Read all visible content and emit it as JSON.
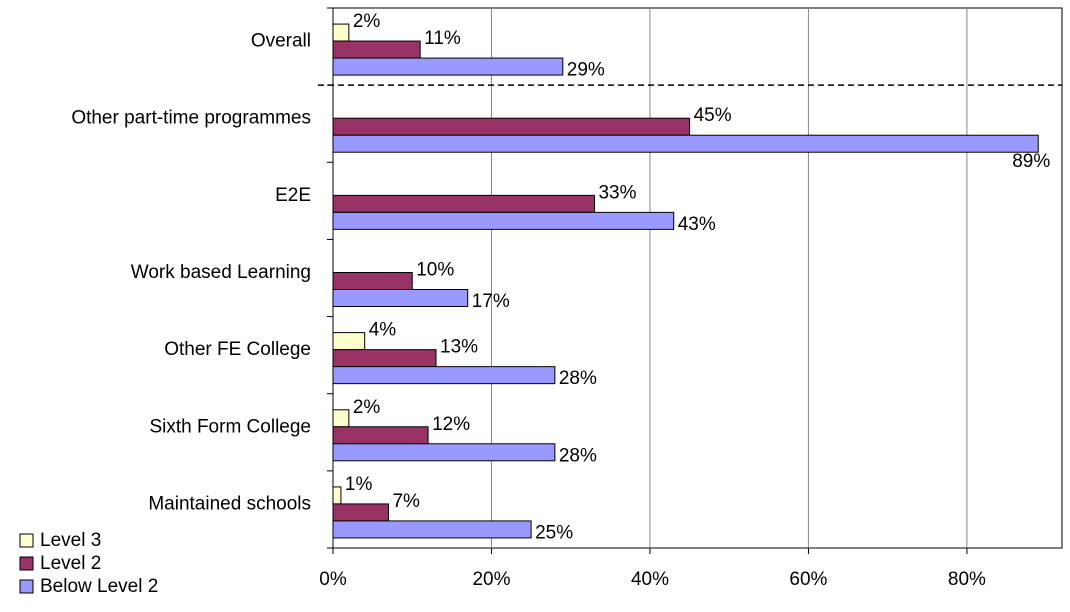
{
  "chart_data": {
    "type": "hbar",
    "categories": [
      "Overall",
      "Other part-time programmes",
      "E2E",
      "Work based Learning",
      "Other FE College",
      "Sixth Form College",
      "Maintained schools"
    ],
    "series": [
      {
        "name": "Level 3",
        "color": "#ffffcc",
        "values": [
          2,
          null,
          null,
          null,
          4,
          2,
          1
        ],
        "value_labels": [
          "2%",
          null,
          null,
          null,
          "4%",
          "2%",
          "1%"
        ]
      },
      {
        "name": "Level 2",
        "color": "#993366",
        "values": [
          11,
          45,
          33,
          10,
          13,
          12,
          7
        ],
        "value_labels": [
          "11%",
          "45%",
          "33%",
          "10%",
          "13%",
          "12%",
          "7%"
        ]
      },
      {
        "name": "Below Level 2",
        "color": "#9999ff",
        "values": [
          29,
          89,
          43,
          17,
          28,
          28,
          25
        ],
        "value_labels": [
          "29%",
          "89%",
          "43%",
          "17%",
          "28%",
          "28%",
          "25%"
        ]
      }
    ],
    "xlim": [
      0,
      92
    ],
    "xticks": [
      {
        "value": 0,
        "label": "0%"
      },
      {
        "value": 20,
        "label": "20%"
      },
      {
        "value": 40,
        "label": "40%"
      },
      {
        "value": 60,
        "label": "60%"
      },
      {
        "value": 80,
        "label": "80%"
      }
    ],
    "grid": true,
    "legend": "lower left"
  }
}
